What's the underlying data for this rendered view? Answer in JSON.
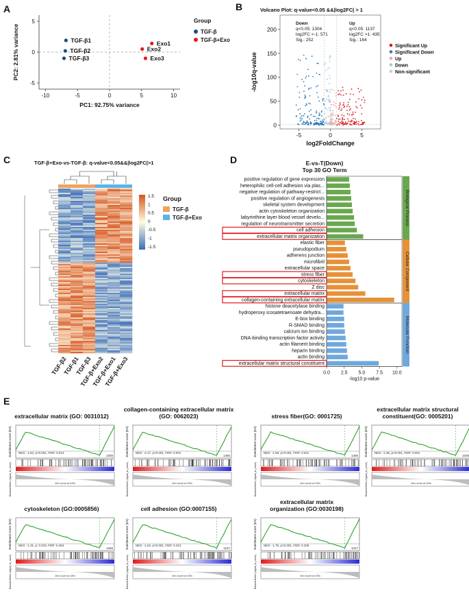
{
  "panels": {
    "A": "A",
    "B": "B",
    "C": "C",
    "D": "D",
    "E": "E"
  },
  "pca": {
    "xlabel": "PC1: 92.75% variance",
    "ylabel": "PC2: 2.81% variance",
    "legend_title": "Group",
    "groups": [
      {
        "name": "TGF-β",
        "color": "#1a4e7a"
      },
      {
        "name": "TGF-β+Exo",
        "color": "#e31a1c"
      }
    ],
    "xticks": [
      "-10",
      "-5",
      "0",
      "5",
      "10"
    ],
    "yticks": [
      "5",
      "0",
      "-5"
    ],
    "points": [
      {
        "label": "TGF-β1",
        "x": -6.8,
        "y": 1.9,
        "group": 0
      },
      {
        "label": "TGF-β2",
        "x": -6.9,
        "y": 0.2,
        "group": 0
      },
      {
        "label": "TGF-β3",
        "x": -7.1,
        "y": -1.0,
        "group": 0
      },
      {
        "label": "Exo1",
        "x": 6.6,
        "y": 1.4,
        "group": 1
      },
      {
        "label": "Exo2",
        "x": 5.1,
        "y": 0.5,
        "group": 1
      },
      {
        "label": "Exo3",
        "x": 5.6,
        "y": -1.0,
        "group": 1
      }
    ]
  },
  "volcano": {
    "title": "Volcano Plot: q-value<0.05 &&|log2FC| > 1",
    "xlabel": "log2FoldChange",
    "ylabel": "-log10q-value",
    "xticks": [
      "-5",
      "0",
      "5"
    ],
    "yticks": [
      "200",
      "150",
      "100",
      "50",
      "0"
    ],
    "down_text": [
      "Down",
      "q<0.05: 1304",
      "log2FC <-1: 571",
      "Sig.: 252"
    ],
    "up_text": [
      "Up",
      "q<0.05: 1137",
      "log2FC >1: 435",
      "Sig.: 164"
    ],
    "legend": [
      {
        "label": "Significant Up",
        "color": "#d7191c"
      },
      {
        "label": "Significant Down",
        "color": "#2c7bb6"
      },
      {
        "label": "Up",
        "color": "#f4a3a3"
      },
      {
        "label": "Down",
        "color": "#9ecae1"
      },
      {
        "label": "Non-significant",
        "color": "#cccccc"
      }
    ]
  },
  "heatmap": {
    "title": "TGF-β+Exo-vs-TGF-β: q-value<0.05&&|log2FC|>1",
    "legend_title": "Group",
    "groups": [
      {
        "name": "TGF-β",
        "color": "#f0a35e"
      },
      {
        "name": "TGF-β+Exo",
        "color": "#5ab4e5"
      }
    ],
    "scale_ticks": [
      "1.5",
      "1",
      "0.5",
      "0",
      "-0.5",
      "-1",
      "-1.5"
    ],
    "columns": [
      "TGF-β2",
      "TGF-β1",
      "TGF-β3",
      "TGF-β+Exo2",
      "TGF-β+Exo1",
      "TGF-β+Exo3"
    ]
  },
  "go": {
    "title": "E-vs-T(Down)",
    "subtitle": "Top 30 GO Term",
    "xlabel": "-log10 p-value",
    "xticks": [
      "0.0",
      "2.5",
      "5.0",
      "7.5",
      "10.0"
    ],
    "categories": [
      {
        "name": "Biological Process",
        "color": "#6aa84f"
      },
      {
        "name": "Cellular Component",
        "color": "#e69138"
      },
      {
        "name": "Molecular Function",
        "color": "#6fa8dc"
      }
    ],
    "terms": [
      {
        "label": "positive regulation of gene expression",
        "value": 3.2,
        "cat": 0,
        "box": false
      },
      {
        "label": "heterophilic cell-cell adhesion via plas...",
        "value": 3.3,
        "cat": 0,
        "box": false
      },
      {
        "label": "negative regulation of pathway-restrict...",
        "value": 3.4,
        "cat": 0,
        "box": false
      },
      {
        "label": "positive regulation of angiogenesis",
        "value": 3.5,
        "cat": 0,
        "box": false
      },
      {
        "label": "skeletal system development",
        "value": 3.6,
        "cat": 0,
        "box": false
      },
      {
        "label": "actin cytoskeleton organization",
        "value": 3.7,
        "cat": 0,
        "box": false
      },
      {
        "label": "labyrinthine layer blood vessel develo...",
        "value": 3.9,
        "cat": 0,
        "box": false
      },
      {
        "label": "regulation of neurotransmitter secretion",
        "value": 4.0,
        "cat": 0,
        "box": false
      },
      {
        "label": "cell adhesion",
        "value": 4.3,
        "cat": 0,
        "box": true
      },
      {
        "label": "extracellular matrix organization",
        "value": 5.2,
        "cat": 0,
        "box": true
      },
      {
        "label": "elastic fiber",
        "value": 2.6,
        "cat": 1,
        "box": false
      },
      {
        "label": "pseudopodium",
        "value": 2.8,
        "cat": 1,
        "box": false
      },
      {
        "label": "adherens junction",
        "value": 3.0,
        "cat": 1,
        "box": false
      },
      {
        "label": "microfibril",
        "value": 3.2,
        "cat": 1,
        "box": false
      },
      {
        "label": "extracellular space",
        "value": 3.4,
        "cat": 1,
        "box": false
      },
      {
        "label": "stress fiber",
        "value": 3.7,
        "cat": 1,
        "box": true
      },
      {
        "label": "cytoskeleton",
        "value": 4.1,
        "cat": 1,
        "box": true
      },
      {
        "label": "Z disc",
        "value": 4.5,
        "cat": 1,
        "box": false
      },
      {
        "label": "extracellular matrix",
        "value": 5.5,
        "cat": 1,
        "box": true
      },
      {
        "label": "collagen-containing extracellular matrix",
        "value": 9.6,
        "cat": 1,
        "box": true
      },
      {
        "label": "histone deacetylase binding",
        "value": 2.4,
        "cat": 2,
        "box": false
      },
      {
        "label": "hydroperoxy icosatetraenoate dehydra...",
        "value": 2.4,
        "cat": 2,
        "box": false
      },
      {
        "label": "E-box binding",
        "value": 2.5,
        "cat": 2,
        "box": false
      },
      {
        "label": "R-SMAD binding",
        "value": 2.5,
        "cat": 2,
        "box": false
      },
      {
        "label": "calcium ion binding",
        "value": 2.6,
        "cat": 2,
        "box": false
      },
      {
        "label": "DNA-binding transcription factor activity",
        "value": 2.7,
        "cat": 2,
        "box": false
      },
      {
        "label": "actin filament binding",
        "value": 2.8,
        "cat": 2,
        "box": false
      },
      {
        "label": "heparin binding",
        "value": 2.9,
        "cat": 2,
        "box": false
      },
      {
        "label": "actin binding",
        "value": 3.0,
        "cat": 2,
        "box": false
      },
      {
        "label": "extracellular matrix structural constituent",
        "value": 7.4,
        "cat": 2,
        "box": true
      }
    ]
  },
  "gsea": {
    "ylabel1": "Enrichment score (ES)",
    "ylabel2": "Ranked Metric (signal_to_noise)",
    "zero_label": "Zero score at 1094",
    "plots": [
      {
        "title": "extracellular matrix (GO: 0031012)",
        "stats": "NES: -1.94, p<0.001, FDR: 0.013",
        "peak": "1008"
      },
      {
        "title": "collagen-containing extracellular matrix (GO: 0062023)",
        "stats": "NES: -2.17, p<0.001, FDR: 0.001",
        "peak": "1486"
      },
      {
        "title": "stress fiber(GO: 0001725)",
        "stats": "NES: -1.68, p<0.001, FDR: 0.011",
        "peak": "1486"
      },
      {
        "title": "extracellular matrix structural constituent(GO: 0005201)",
        "stats": "NES: -2.35, p<0.001, FDR: 0.001",
        "peak": "1008"
      },
      {
        "title": "cytoskeleton (GO:0005856)",
        "stats": "NES: -1.31, p: 0.023, FDR: 0.484",
        "peak": "1288"
      },
      {
        "title": "cell adhesion (GO:0007155)",
        "stats": "NES: -1.62, p<0.001, FDR: 0.313",
        "peak": "1167"
      },
      {
        "title": "extracellular matrix organization (GO:0030198)",
        "stats": "NES: -1.79, p<0.001, FDR: 0.209",
        "peak": "1027"
      }
    ]
  }
}
